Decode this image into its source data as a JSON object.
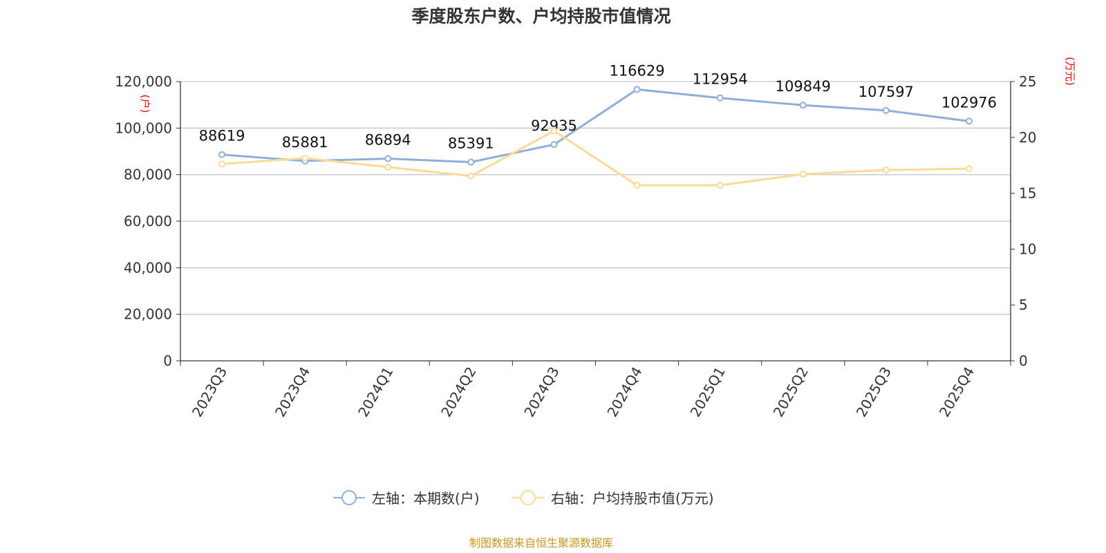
{
  "chart_data": {
    "type": "line",
    "title": "季度股东户数、户均持股市值情况",
    "categories": [
      "2023Q3",
      "2023Q4",
      "2024Q1",
      "2024Q2",
      "2024Q3",
      "2024Q4",
      "2025Q1",
      "2025Q2",
      "2025Q3",
      "2025Q4"
    ],
    "left_axis": {
      "unit": "(户)",
      "ylim": [
        0,
        120000
      ],
      "ticks": [
        "0",
        "20,000",
        "40,000",
        "60,000",
        "80,000",
        "100,000",
        "120,000"
      ]
    },
    "right_axis": {
      "unit": "(万元)",
      "ylim": [
        0,
        25
      ],
      "ticks": [
        "0",
        "5",
        "10",
        "15",
        "20",
        "25"
      ]
    },
    "grid": true,
    "legend_position": "bottom",
    "series": [
      {
        "name": "左轴：本期数(户)",
        "axis": "left",
        "color": "#8eaedb",
        "values": [
          88619,
          85881,
          86894,
          85391,
          92935,
          116629,
          112954,
          109849,
          107597,
          102976
        ],
        "labels": [
          "88619",
          "85881",
          "86894",
          "85391",
          "92935",
          "116629",
          "112954",
          "109849",
          "107597",
          "102976"
        ]
      },
      {
        "name": "右轴：户均持股市值(万元)",
        "axis": "right",
        "color": "#fdd995",
        "values": [
          17.61,
          18.15,
          17.34,
          16.55,
          20.58,
          15.72,
          15.72,
          16.71,
          17.08,
          17.2
        ]
      }
    ],
    "source": "制图数据来自恒生聚源数据库"
  }
}
